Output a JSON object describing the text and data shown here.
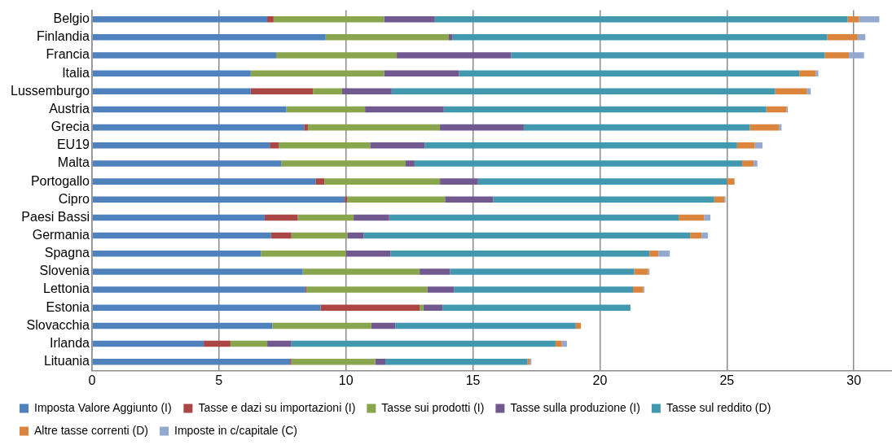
{
  "chart_data": {
    "type": "bar",
    "orientation": "horizontal",
    "stacked": true,
    "categories": [
      "Belgio",
      "Finlandia",
      "Francia",
      "Italia",
      "Lussemburgo",
      "Austria",
      "Grecia",
      "EU19",
      "Malta",
      "Portogallo",
      "Cipro",
      "Paesi Bassi",
      "Germania",
      "Spagna",
      "Slovenia",
      "Lettonia",
      "Estonia",
      "Slovacchia",
      "Irlanda",
      "Lituania"
    ],
    "series": [
      {
        "name": "Imposta Valore Aggiunto (I)",
        "color": "#4f81bd",
        "values": [
          6.9,
          9.2,
          7.25,
          6.25,
          6.25,
          7.65,
          8.35,
          7.0,
          7.45,
          8.8,
          9.95,
          6.8,
          7.05,
          6.65,
          8.3,
          8.4,
          9.0,
          7.1,
          4.4,
          7.8
        ]
      },
      {
        "name": "Tasse e dazi su importazioni (I)",
        "color": "#aa4643",
        "values": [
          0.25,
          0,
          0,
          0,
          2.45,
          0,
          0.15,
          0.35,
          0,
          0.35,
          0.1,
          1.3,
          0.8,
          0,
          0,
          0.05,
          3.9,
          0,
          1.05,
          0.05
        ]
      },
      {
        "name": "Tasse sui prodotti (I)",
        "color": "#89a54e",
        "values": [
          4.35,
          4.85,
          4.75,
          5.25,
          1.15,
          3.1,
          5.2,
          3.6,
          4.9,
          4.55,
          3.85,
          2.2,
          2.2,
          3.35,
          4.6,
          4.75,
          0.15,
          3.9,
          1.45,
          3.3
        ]
      },
      {
        "name": "Tasse sulla produzione (I)",
        "color": "#71588f",
        "values": [
          2.0,
          0.15,
          4.5,
          2.95,
          1.95,
          3.1,
          3.3,
          2.15,
          0.35,
          1.5,
          1.9,
          1.4,
          0.65,
          1.75,
          1.2,
          1.05,
          0.75,
          0.95,
          0.95,
          0.4
        ]
      },
      {
        "name": "Tasse sul reddito (D)",
        "color": "#4198af",
        "values": [
          16.25,
          14.75,
          12.35,
          13.4,
          15.1,
          12.7,
          8.9,
          12.3,
          12.9,
          9.8,
          8.7,
          11.4,
          12.85,
          10.2,
          7.25,
          7.05,
          7.4,
          7.1,
          10.4,
          5.6
        ]
      },
      {
        "name": "Altre tasse correnti (D)",
        "color": "#db843d",
        "values": [
          0.45,
          1.2,
          0.95,
          0.65,
          1.25,
          0.8,
          1.15,
          0.7,
          0.45,
          0.3,
          0.4,
          1.0,
          0.45,
          0.35,
          0.55,
          0.4,
          0,
          0.2,
          0.25,
          0.1
        ]
      },
      {
        "name": "Imposte in c/capitale (C)",
        "color": "#93a9cf",
        "values": [
          0.8,
          0.3,
          0.6,
          0.1,
          0.15,
          0.05,
          0.1,
          0.3,
          0.15,
          0,
          0.05,
          0.25,
          0.25,
          0.45,
          0.05,
          0.05,
          0,
          0,
          0.2,
          0.05
        ]
      }
    ],
    "xlim": [
      0,
      31.5
    ],
    "xticks": [
      0,
      5,
      10,
      15,
      20,
      25,
      30
    ],
    "grid": "x",
    "legend": "bottom"
  }
}
